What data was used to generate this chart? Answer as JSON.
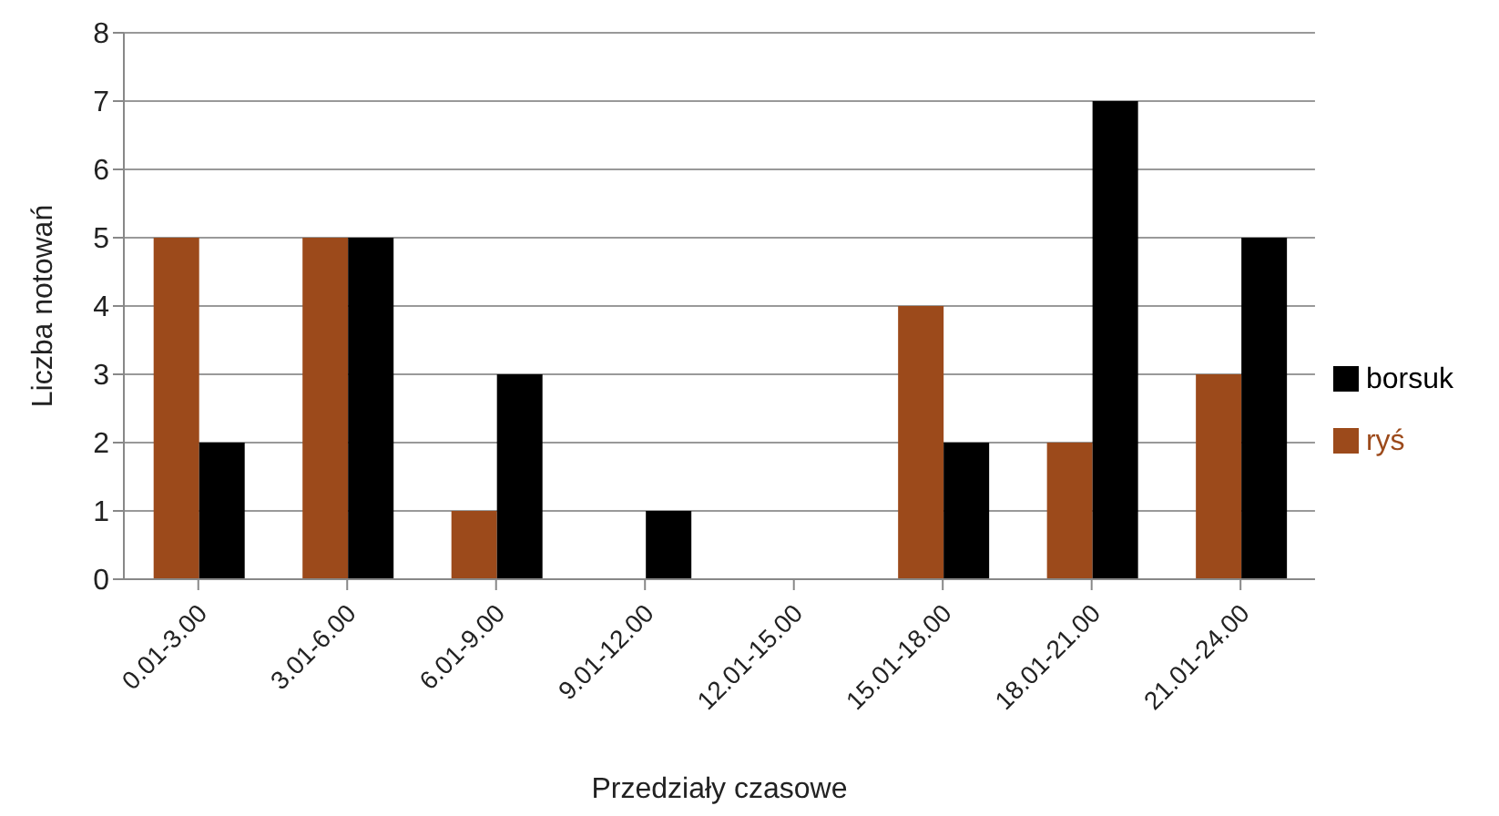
{
  "chart_data": {
    "type": "bar",
    "xlabel": "Przedziały czasowe",
    "ylabel": "Liczba notowań",
    "categories": [
      "0.01-3.00",
      "3.01-6.00",
      "6.01-9.00",
      "9.01-12.00",
      "12.01-15.00",
      "15.01-18.00",
      "18.01-21.00",
      "21.01-24.00"
    ],
    "series": [
      {
        "name": "ryś",
        "color": "#9c4a1b",
        "values": [
          5,
          5,
          1,
          0,
          0,
          4,
          2,
          3
        ]
      },
      {
        "name": "borsuk",
        "color": "#000000",
        "values": [
          2,
          5,
          3,
          1,
          0,
          2,
          7,
          5
        ]
      }
    ],
    "ylim": [
      0,
      8
    ],
    "yticks": [
      0,
      1,
      2,
      3,
      4,
      5,
      6,
      7,
      8
    ],
    "grid": "y",
    "legend": "right"
  }
}
